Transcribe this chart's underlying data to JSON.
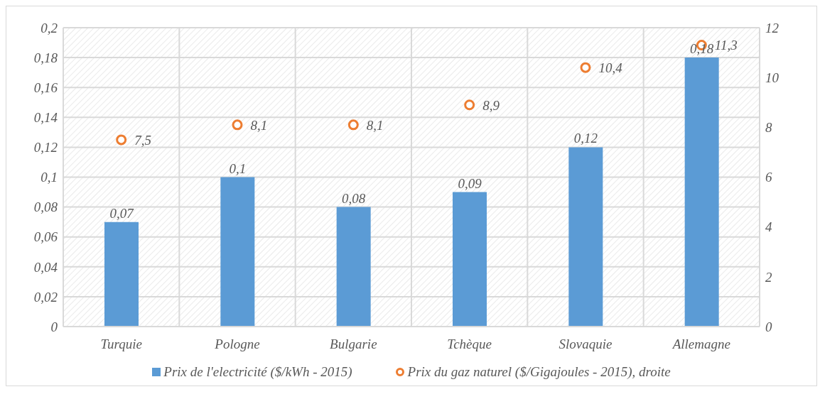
{
  "chart_data": {
    "type": "bar",
    "categories": [
      "Turquie",
      "Pologne",
      "Bulgarie",
      "Tchèque",
      "Slovaquie",
      "Allemagne"
    ],
    "series": [
      {
        "name": "Prix de l'electricité ($/kWh - 2015)",
        "color": "#5b9bd5",
        "values": [
          0.07,
          0.1,
          0.08,
          0.09,
          0.12,
          0.18
        ],
        "value_labels": [
          "0,07",
          "0,1",
          "0,08",
          "0,09",
          "0,12",
          "0,18"
        ]
      },
      {
        "name": "Prix du gaz naturel ($/Gigajoules - 2015), droite",
        "type": "scatter",
        "axis": "y2",
        "color": "#ed7d31",
        "marker": "circle",
        "values": [
          7.5,
          8.1,
          8.1,
          8.9,
          10.4,
          11.3
        ],
        "value_labels": [
          "7,5",
          "8,1",
          "8,1",
          "8,9",
          "10,4",
          "11,3"
        ]
      }
    ],
    "ylim": [
      0,
      0.2
    ],
    "yticks": [
      {
        "value": 0,
        "label": "0"
      },
      {
        "value": 0.02,
        "label": "0,02"
      },
      {
        "value": 0.04,
        "label": "0,04"
      },
      {
        "value": 0.06,
        "label": "0,06"
      },
      {
        "value": 0.08,
        "label": "0,08"
      },
      {
        "value": 0.1,
        "label": "0,1"
      },
      {
        "value": 0.12,
        "label": "0,12"
      },
      {
        "value": 0.14,
        "label": "0,14"
      },
      {
        "value": 0.16,
        "label": "0,16"
      },
      {
        "value": 0.18,
        "label": "0,18"
      },
      {
        "value": 0.2,
        "label": "0,2"
      }
    ],
    "y2lim": [
      0,
      12
    ],
    "y2ticks": [
      0,
      2,
      4,
      6,
      8,
      10,
      12
    ],
    "grid": true,
    "legend": "bottom"
  }
}
